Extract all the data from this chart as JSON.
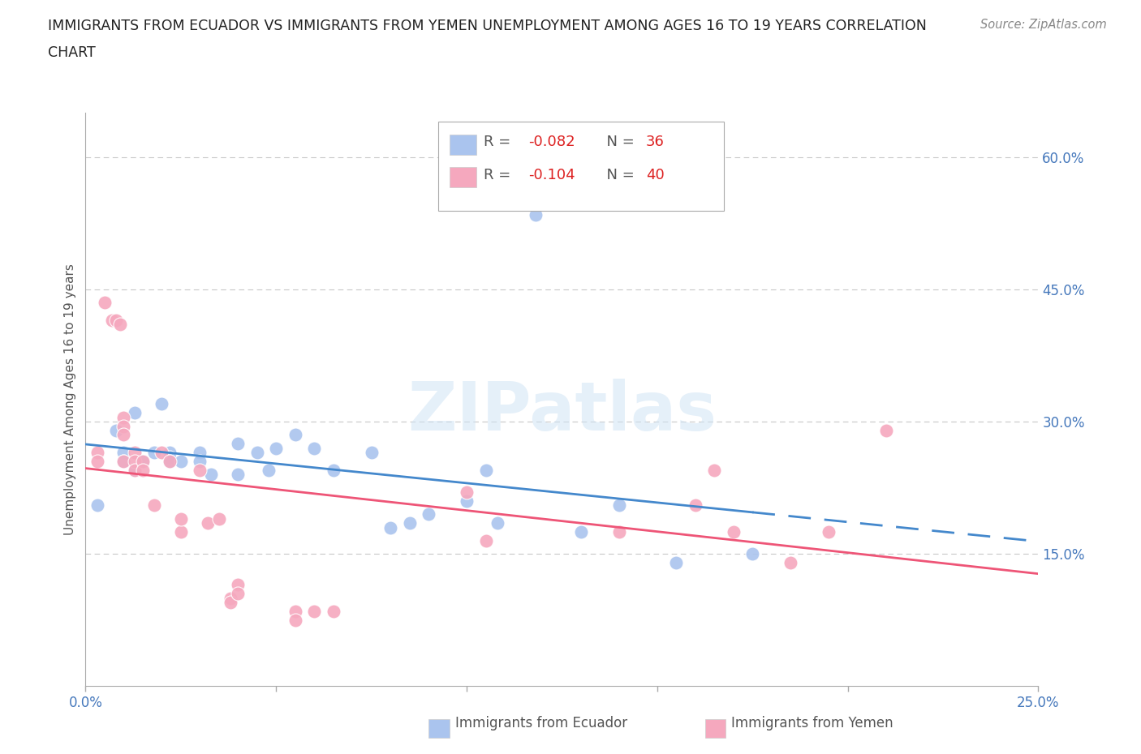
{
  "title_line1": "IMMIGRANTS FROM ECUADOR VS IMMIGRANTS FROM YEMEN UNEMPLOYMENT AMONG AGES 16 TO 19 YEARS CORRELATION",
  "title_line2": "CHART",
  "source": "Source: ZipAtlas.com",
  "ylabel": "Unemployment Among Ages 16 to 19 years",
  "xlim": [
    0.0,
    0.25
  ],
  "ylim": [
    0.0,
    0.65
  ],
  "xticks": [
    0.0,
    0.05,
    0.1,
    0.15,
    0.2,
    0.25
  ],
  "ytick_right": [
    0.15,
    0.3,
    0.45,
    0.6
  ],
  "ytick_right_labels": [
    "15.0%",
    "30.0%",
    "45.0%",
    "60.0%"
  ],
  "grid_color": "#c8c8c8",
  "background_color": "#ffffff",
  "ecuador_color": "#aac4ee",
  "yemen_color": "#f5a8be",
  "ecuador_R": -0.082,
  "ecuador_N": 36,
  "yemen_R": -0.104,
  "yemen_N": 40,
  "ecuador_line_color": "#4488cc",
  "yemen_line_color": "#ee5577",
  "watermark_text": "ZIPatlas",
  "legend_label_color": "#555555",
  "legend_value_color": "#dd2222",
  "ecuador_scatter": [
    [
      0.003,
      0.205
    ],
    [
      0.008,
      0.29
    ],
    [
      0.01,
      0.265
    ],
    [
      0.01,
      0.255
    ],
    [
      0.013,
      0.31
    ],
    [
      0.013,
      0.245
    ],
    [
      0.015,
      0.255
    ],
    [
      0.018,
      0.265
    ],
    [
      0.02,
      0.32
    ],
    [
      0.022,
      0.265
    ],
    [
      0.022,
      0.26
    ],
    [
      0.022,
      0.255
    ],
    [
      0.025,
      0.255
    ],
    [
      0.03,
      0.265
    ],
    [
      0.03,
      0.255
    ],
    [
      0.033,
      0.24
    ],
    [
      0.04,
      0.275
    ],
    [
      0.04,
      0.24
    ],
    [
      0.045,
      0.265
    ],
    [
      0.048,
      0.245
    ],
    [
      0.05,
      0.27
    ],
    [
      0.055,
      0.285
    ],
    [
      0.06,
      0.27
    ],
    [
      0.065,
      0.245
    ],
    [
      0.075,
      0.265
    ],
    [
      0.08,
      0.18
    ],
    [
      0.085,
      0.185
    ],
    [
      0.09,
      0.195
    ],
    [
      0.1,
      0.21
    ],
    [
      0.105,
      0.245
    ],
    [
      0.108,
      0.185
    ],
    [
      0.118,
      0.535
    ],
    [
      0.13,
      0.175
    ],
    [
      0.14,
      0.205
    ],
    [
      0.155,
      0.14
    ],
    [
      0.175,
      0.15
    ]
  ],
  "yemen_scatter": [
    [
      0.003,
      0.265
    ],
    [
      0.003,
      0.255
    ],
    [
      0.005,
      0.435
    ],
    [
      0.007,
      0.415
    ],
    [
      0.008,
      0.415
    ],
    [
      0.009,
      0.41
    ],
    [
      0.01,
      0.305
    ],
    [
      0.01,
      0.295
    ],
    [
      0.01,
      0.285
    ],
    [
      0.01,
      0.255
    ],
    [
      0.013,
      0.265
    ],
    [
      0.013,
      0.255
    ],
    [
      0.013,
      0.245
    ],
    [
      0.015,
      0.255
    ],
    [
      0.015,
      0.245
    ],
    [
      0.018,
      0.205
    ],
    [
      0.02,
      0.265
    ],
    [
      0.022,
      0.255
    ],
    [
      0.025,
      0.175
    ],
    [
      0.025,
      0.19
    ],
    [
      0.03,
      0.245
    ],
    [
      0.032,
      0.185
    ],
    [
      0.035,
      0.19
    ],
    [
      0.038,
      0.1
    ],
    [
      0.038,
      0.095
    ],
    [
      0.04,
      0.115
    ],
    [
      0.04,
      0.105
    ],
    [
      0.055,
      0.085
    ],
    [
      0.055,
      0.075
    ],
    [
      0.06,
      0.085
    ],
    [
      0.065,
      0.085
    ],
    [
      0.1,
      0.22
    ],
    [
      0.105,
      0.165
    ],
    [
      0.14,
      0.175
    ],
    [
      0.16,
      0.205
    ],
    [
      0.165,
      0.245
    ],
    [
      0.17,
      0.175
    ],
    [
      0.185,
      0.14
    ],
    [
      0.195,
      0.175
    ],
    [
      0.21,
      0.29
    ]
  ]
}
